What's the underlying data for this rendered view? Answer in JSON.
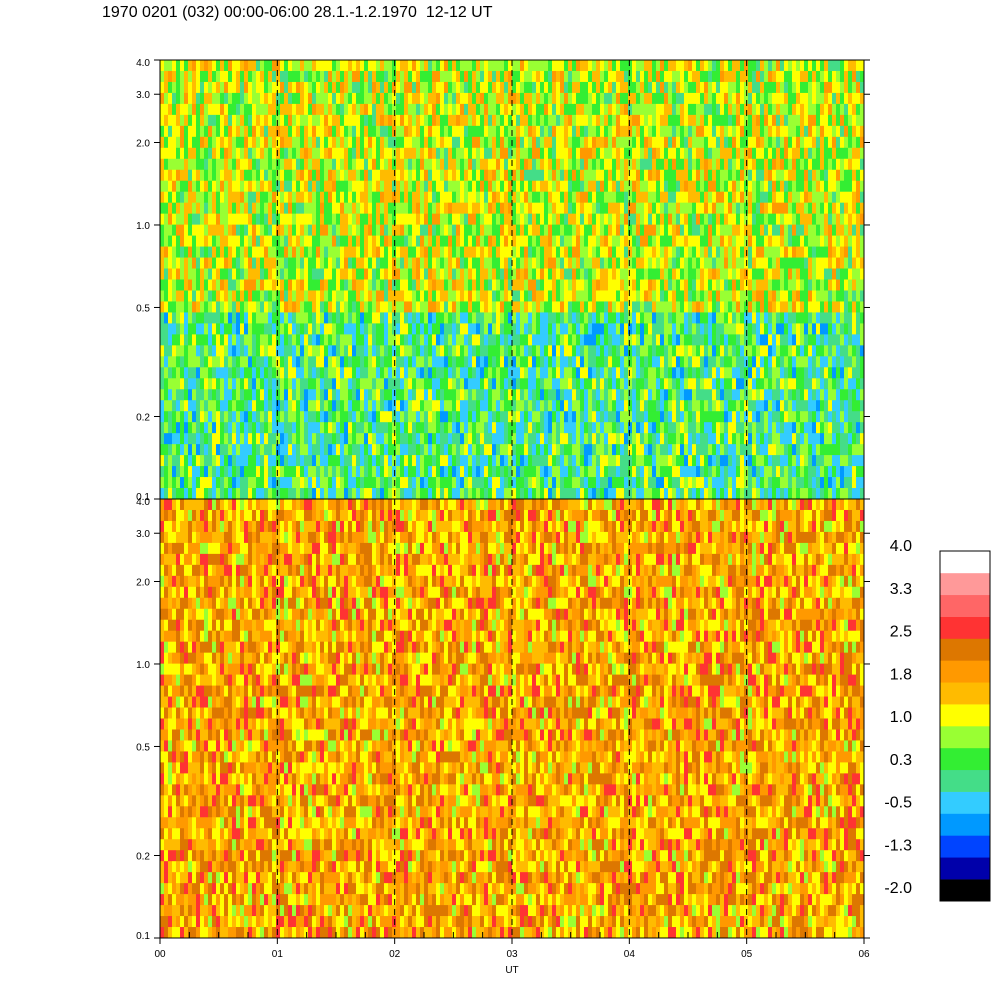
{
  "title": "1970 0201 (032) 00:00-06:00 28.1.-1.2.1970  12-12 UT",
  "chart_data": {
    "type": "heatmap",
    "title": "1970 0201 (032) 00:00-06:00 28.1.-1.2.1970  12-12 UT",
    "xlabel": "UT",
    "x_ticks": [
      "00",
      "01",
      "02",
      "03",
      "04",
      "05",
      "06"
    ],
    "x_range": [
      0,
      6
    ],
    "dashed_hour_lines": [
      1,
      2,
      3,
      4,
      5
    ],
    "y_scale": "log",
    "y_range": [
      0.1,
      4.0
    ],
    "y_ticks": [
      "0.1",
      "0.2",
      "0.5",
      "1.0",
      "2.0",
      "3.0",
      "4.0"
    ],
    "panels": [
      {
        "name": "upper",
        "dominant_levels": [
          {
            "freq_range": [
              0.1,
              0.5
            ],
            "level": 0.3
          },
          {
            "freq_range": [
              0.5,
              4.0
            ],
            "level": 1.0
          }
        ]
      },
      {
        "name": "lower",
        "dominant_levels": [
          {
            "freq_range": [
              0.1,
              0.5
            ],
            "level": 1.8
          },
          {
            "freq_range": [
              0.5,
              4.0
            ],
            "level": 1.8
          }
        ]
      }
    ],
    "colorbar": {
      "labels": [
        "4.0",
        "3.3",
        "2.5",
        "1.8",
        "1.0",
        "0.3",
        "-0.5",
        "-1.3",
        "-2.0"
      ],
      "colors": [
        "#000000",
        "#0000aa",
        "#0044ff",
        "#0099ff",
        "#33ccff",
        "#44dd88",
        "#33ee33",
        "#99ff33",
        "#ffff00",
        "#ffbb00",
        "#ff9900",
        "#dd7700",
        "#ff3333",
        "#ff6666",
        "#ff9999",
        "#ffffff"
      ]
    }
  }
}
